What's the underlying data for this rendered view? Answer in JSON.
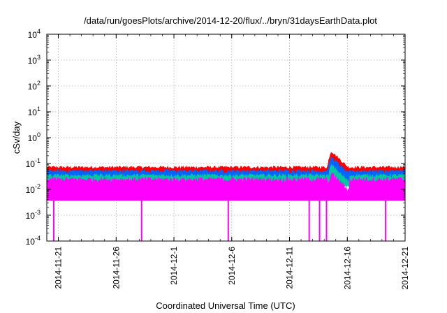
{
  "chart_data": {
    "type": "area",
    "title": "/data/run/goesPlots/archive/2014-12-20/flux/../bryn/31daysEarthData.plot",
    "xlabel": "Coordinated Universal Time (UTC)",
    "ylabel": "cSv/day",
    "yscale": "log",
    "xlim": [
      "2014-11-20",
      "2014-12-21"
    ],
    "ylim": [
      0.0001,
      10000
    ],
    "grid": true,
    "x_ticks": [
      "2014-11-21",
      "2014-11-26",
      "2014-12-1",
      "2014-12-6",
      "2014-12-11",
      "2014-12-16",
      "2014-12-21"
    ],
    "y_ticks": [
      {
        "base": "10",
        "exp": "-4"
      },
      {
        "base": "10",
        "exp": "-3"
      },
      {
        "base": "10",
        "exp": "-2"
      },
      {
        "base": "10",
        "exp": "-1"
      },
      {
        "base": "10",
        "exp": "0"
      },
      {
        "base": "10",
        "exp": "1"
      },
      {
        "base": "10",
        "exp": "2"
      },
      {
        "base": "10",
        "exp": "3"
      },
      {
        "base": "10",
        "exp": "4"
      }
    ],
    "series": [
      {
        "color": "#ff0000",
        "typical_low": 0.04,
        "typical_high": 0.08
      },
      {
        "color": "#0066ff",
        "typical_low": 0.02,
        "typical_high": 0.06
      },
      {
        "color": "#00c8a0",
        "typical_low": 0.015,
        "typical_high": 0.04
      },
      {
        "color": "#ff00ff",
        "typical_low": 0.004,
        "typical_high": 0.03
      }
    ],
    "events": {
      "peak": {
        "date": "2014-12-14.6",
        "value": 0.3
      },
      "dropouts": [
        "2014-11-20.6",
        "2014-11-28.2",
        "2014-12-5.7",
        "2014-12-12.7",
        "2014-12-13.6",
        "2014-12-14.2",
        "2014-12-19.3"
      ]
    }
  }
}
